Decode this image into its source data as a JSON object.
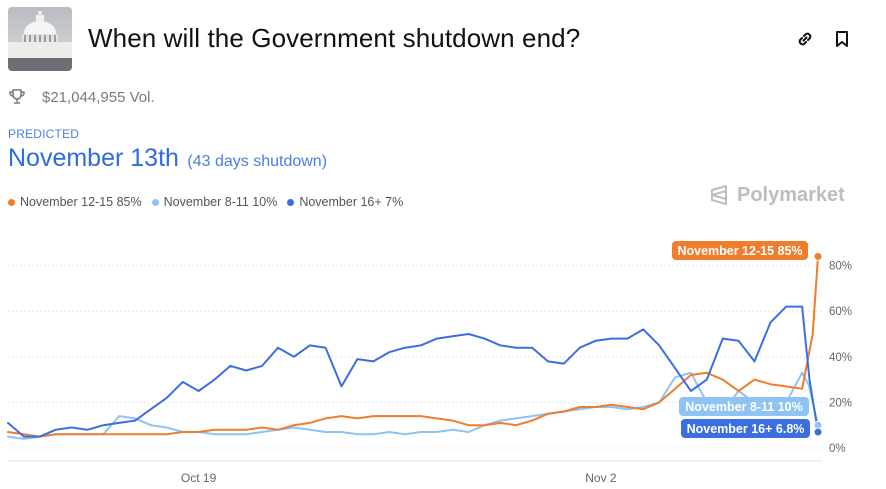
{
  "header": {
    "title": "When will the Government shutdown end?",
    "volume": "$21,044,955 Vol.",
    "link_icon": "link-icon",
    "bookmark_icon": "bookmark-icon",
    "trophy_icon": "trophy-icon"
  },
  "prediction": {
    "label": "PREDICTED",
    "value": "November 13th",
    "note": "(43 days shutdown)"
  },
  "legend": [
    {
      "label": "November 12-15 85%",
      "color": "#f07c2e"
    },
    {
      "label": "November 8-11 10%",
      "color": "#8ec3f4"
    },
    {
      "label": "November 16+ 7%",
      "color": "#3b6fe0"
    }
  ],
  "brand": "Polymarket",
  "chart_data": {
    "type": "line",
    "x_range": [
      "2025-10-01",
      "2025-11-12"
    ],
    "x_ticks": [
      "Oct 19",
      "Nov 2"
    ],
    "y_ticks": [
      "0%",
      "20%",
      "40%",
      "60%",
      "80%"
    ],
    "ylim": [
      0,
      90
    ],
    "grid": true,
    "series": [
      {
        "name": "November 12-15",
        "color": "#f07c2e",
        "end_label": "November 12-15 85%",
        "points": [
          [
            0,
            7
          ],
          [
            1.5,
            6
          ],
          [
            3,
            5
          ],
          [
            4.5,
            6
          ],
          [
            6,
            6
          ],
          [
            7.5,
            6
          ],
          [
            9,
            6
          ],
          [
            10.5,
            6
          ],
          [
            12,
            6
          ],
          [
            13.5,
            6
          ],
          [
            15,
            6
          ],
          [
            16.5,
            7
          ],
          [
            18,
            7
          ],
          [
            19.5,
            8
          ],
          [
            21,
            8
          ],
          [
            22.5,
            8
          ],
          [
            24,
            9
          ],
          [
            25.5,
            8
          ],
          [
            27,
            10
          ],
          [
            28.5,
            11
          ],
          [
            30,
            13
          ],
          [
            31.5,
            14
          ],
          [
            33,
            13
          ],
          [
            34.5,
            14
          ],
          [
            36,
            14
          ],
          [
            37.5,
            14
          ],
          [
            39,
            14
          ],
          [
            40.5,
            13
          ],
          [
            42,
            12
          ],
          [
            43.5,
            10
          ],
          [
            45,
            10
          ],
          [
            46.5,
            11
          ],
          [
            48,
            10
          ],
          [
            49.5,
            12
          ],
          [
            51,
            15
          ],
          [
            52.5,
            16
          ],
          [
            54,
            18
          ],
          [
            55.5,
            18
          ],
          [
            57,
            19
          ],
          [
            58.5,
            18
          ],
          [
            60,
            17
          ],
          [
            61.5,
            20
          ],
          [
            63,
            26
          ],
          [
            64.5,
            32
          ],
          [
            66,
            33
          ],
          [
            67.5,
            30
          ],
          [
            69,
            25
          ],
          [
            70.5,
            30
          ],
          [
            72,
            28
          ],
          [
            73.5,
            27
          ],
          [
            75,
            26
          ],
          [
            76,
            50
          ],
          [
            76.5,
            84
          ]
        ]
      },
      {
        "name": "November 8-11",
        "color": "#8ec3f4",
        "end_label": "November 8-11 10%",
        "points": [
          [
            0,
            5
          ],
          [
            1.5,
            4
          ],
          [
            3,
            5
          ],
          [
            4.5,
            6
          ],
          [
            6,
            6
          ],
          [
            7.5,
            6
          ],
          [
            9,
            6
          ],
          [
            10.5,
            14
          ],
          [
            12,
            13
          ],
          [
            13.5,
            10
          ],
          [
            15,
            9
          ],
          [
            16.5,
            7
          ],
          [
            18,
            7
          ],
          [
            19.5,
            6
          ],
          [
            21,
            6
          ],
          [
            22.5,
            6
          ],
          [
            24,
            7
          ],
          [
            25.5,
            8
          ],
          [
            27,
            9
          ],
          [
            28.5,
            8
          ],
          [
            30,
            7
          ],
          [
            31.5,
            7
          ],
          [
            33,
            6
          ],
          [
            34.5,
            6
          ],
          [
            36,
            7
          ],
          [
            37.5,
            6
          ],
          [
            39,
            7
          ],
          [
            40.5,
            7
          ],
          [
            42,
            8
          ],
          [
            43.5,
            7
          ],
          [
            45,
            10
          ],
          [
            46.5,
            12
          ],
          [
            48,
            13
          ],
          [
            49.5,
            14
          ],
          [
            51,
            15
          ],
          [
            52.5,
            16
          ],
          [
            54,
            17
          ],
          [
            55.5,
            18
          ],
          [
            57,
            18
          ],
          [
            58.5,
            17
          ],
          [
            60,
            18
          ],
          [
            61.5,
            20
          ],
          [
            63,
            31
          ],
          [
            64.5,
            33
          ],
          [
            66,
            20
          ],
          [
            67.5,
            16
          ],
          [
            69,
            25
          ],
          [
            70.5,
            20
          ],
          [
            72,
            18
          ],
          [
            73.5,
            20
          ],
          [
            75,
            33
          ],
          [
            75.6,
            28
          ],
          [
            76.5,
            10
          ]
        ]
      },
      {
        "name": "November 16+",
        "color": "#3b6fe0",
        "end_label": "November 16+ 6.8%",
        "points": [
          [
            0,
            11
          ],
          [
            1.5,
            5
          ],
          [
            3,
            5
          ],
          [
            4.5,
            8
          ],
          [
            6,
            9
          ],
          [
            7.5,
            8
          ],
          [
            9,
            10
          ],
          [
            10.5,
            11
          ],
          [
            12,
            12
          ],
          [
            13.5,
            17
          ],
          [
            15,
            22
          ],
          [
            16.5,
            29
          ],
          [
            18,
            25
          ],
          [
            19.5,
            30
          ],
          [
            21,
            36
          ],
          [
            22.5,
            34
          ],
          [
            24,
            36
          ],
          [
            25.5,
            44
          ],
          [
            27,
            40
          ],
          [
            28.5,
            45
          ],
          [
            30,
            44
          ],
          [
            31.5,
            27
          ],
          [
            33,
            39
          ],
          [
            34.5,
            38
          ],
          [
            36,
            42
          ],
          [
            37.5,
            44
          ],
          [
            39,
            45
          ],
          [
            40.5,
            48
          ],
          [
            42,
            49
          ],
          [
            43.5,
            50
          ],
          [
            45,
            48
          ],
          [
            46.5,
            45
          ],
          [
            48,
            44
          ],
          [
            49.5,
            44
          ],
          [
            51,
            38
          ],
          [
            52.5,
            37
          ],
          [
            54,
            44
          ],
          [
            55.5,
            47
          ],
          [
            57,
            48
          ],
          [
            58.5,
            48
          ],
          [
            60,
            52
          ],
          [
            61.5,
            45
          ],
          [
            63,
            35
          ],
          [
            64.5,
            25
          ],
          [
            66,
            30
          ],
          [
            67.5,
            48
          ],
          [
            69,
            47
          ],
          [
            70.5,
            38
          ],
          [
            72,
            55
          ],
          [
            73.5,
            62
          ],
          [
            75,
            62
          ],
          [
            75.7,
            30
          ],
          [
            76.5,
            7
          ]
        ]
      }
    ]
  }
}
